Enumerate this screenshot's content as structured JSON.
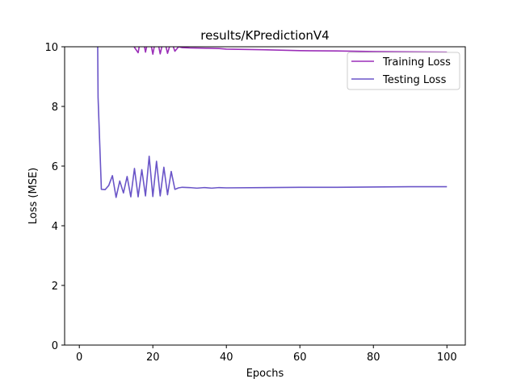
{
  "chart_data": {
    "type": "line",
    "title": "results/KPredictionV4",
    "xlabel": "Epochs",
    "ylabel": "Loss (MSE)",
    "xlim": [
      -4,
      105
    ],
    "ylim": [
      0,
      10
    ],
    "xticks": [
      0,
      20,
      40,
      60,
      80,
      100
    ],
    "yticks": [
      0,
      2,
      4,
      6,
      8,
      10
    ],
    "legend_position": "top-right",
    "grid": false,
    "series": [
      {
        "name": "Training Loss",
        "color": "#9b2fb8",
        "points": [
          [
            14,
            10.5
          ],
          [
            15,
            9.98
          ],
          [
            16,
            9.8
          ],
          [
            17,
            10.5
          ],
          [
            18,
            9.82
          ],
          [
            19,
            10.4
          ],
          [
            20,
            9.75
          ],
          [
            21,
            10.4
          ],
          [
            22,
            9.76
          ],
          [
            23,
            10.3
          ],
          [
            24,
            9.78
          ],
          [
            25,
            10.2
          ],
          [
            26,
            9.85
          ],
          [
            27,
            10.0
          ],
          [
            28,
            9.97
          ],
          [
            30,
            9.96
          ],
          [
            35,
            9.95
          ],
          [
            38,
            9.94
          ],
          [
            40,
            9.92
          ],
          [
            50,
            9.9
          ],
          [
            60,
            9.87
          ],
          [
            70,
            9.86
          ],
          [
            80,
            9.84
          ],
          [
            90,
            9.83
          ],
          [
            100,
            9.82
          ]
        ]
      },
      {
        "name": "Testing Loss",
        "color": "#6a55c8",
        "points": [
          [
            5,
            11.0
          ],
          [
            5,
            10.0
          ],
          [
            5.1,
            8.3
          ],
          [
            6,
            5.22
          ],
          [
            7,
            5.21
          ],
          [
            8,
            5.35
          ],
          [
            9,
            5.68
          ],
          [
            10,
            4.95
          ],
          [
            11,
            5.5
          ],
          [
            12,
            5.1
          ],
          [
            13,
            5.65
          ],
          [
            14,
            4.97
          ],
          [
            15,
            5.92
          ],
          [
            16,
            4.97
          ],
          [
            17,
            5.88
          ],
          [
            18,
            5.0
          ],
          [
            19,
            6.33
          ],
          [
            20,
            4.98
          ],
          [
            21,
            6.16
          ],
          [
            22,
            5.0
          ],
          [
            23,
            5.96
          ],
          [
            24,
            5.04
          ],
          [
            25,
            5.82
          ],
          [
            26,
            5.22
          ],
          [
            27,
            5.27
          ],
          [
            28,
            5.29
          ],
          [
            30,
            5.28
          ],
          [
            32,
            5.26
          ],
          [
            34,
            5.28
          ],
          [
            36,
            5.26
          ],
          [
            38,
            5.28
          ],
          [
            40,
            5.27
          ],
          [
            50,
            5.28
          ],
          [
            60,
            5.29
          ],
          [
            70,
            5.29
          ],
          [
            80,
            5.3
          ],
          [
            90,
            5.31
          ],
          [
            100,
            5.31
          ]
        ]
      }
    ]
  }
}
